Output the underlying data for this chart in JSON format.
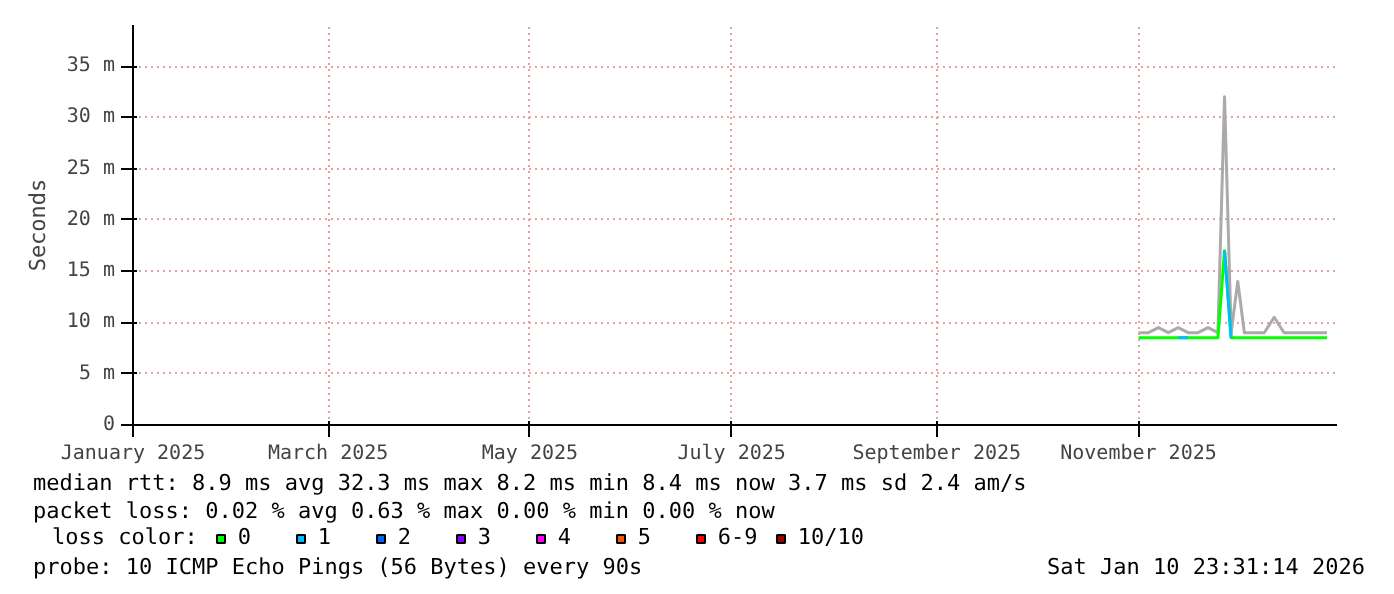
{
  "chart_data": {
    "type": "line",
    "ylabel": "Seconds",
    "x": [
      "2025-11-01",
      "2025-11-04",
      "2025-11-07",
      "2025-11-10",
      "2025-11-13",
      "2025-11-16",
      "2025-11-19",
      "2025-11-22",
      "2025-11-25",
      "2025-11-27",
      "2025-11-29",
      "2025-12-01",
      "2025-12-03",
      "2025-12-06",
      "2025-12-09",
      "2025-12-12",
      "2025-12-15",
      "2025-12-18",
      "2025-12-21",
      "2025-12-24",
      "2025-12-28"
    ],
    "series": [
      {
        "color": "#aaaaaa",
        "values": [
          9,
          9,
          9.5,
          9,
          9.5,
          9,
          9,
          9.5,
          9,
          32,
          9,
          14,
          9,
          9,
          9,
          10.5,
          9,
          9,
          9,
          9,
          9
        ]
      },
      {
        "name": "0",
        "color": "#00ff00",
        "values": [
          8.5,
          8.5,
          8.5,
          8.5,
          8.5,
          8.5,
          8.5,
          8.5,
          8.5,
          17,
          8.5,
          8.5,
          8.5,
          8.5,
          8.5,
          8.5,
          8.5,
          8.5,
          8.5,
          8.5,
          8.5
        ]
      },
      {
        "name": "1",
        "color": "#00bbff",
        "values": [
          null,
          null,
          null,
          null,
          8.5,
          8.5,
          null,
          null,
          null,
          17,
          8.5,
          null,
          null,
          null,
          null,
          null,
          null,
          null,
          null,
          null,
          null
        ]
      },
      {
        "name": "2",
        "color": "#0066ff",
        "values": [
          null,
          null,
          null,
          null,
          null,
          null,
          null,
          null,
          null,
          null,
          null,
          null,
          null,
          null,
          null,
          null,
          null,
          null,
          null,
          null,
          null
        ]
      },
      {
        "name": "3",
        "color": "#8800ff",
        "values": [
          null,
          null,
          null,
          null,
          null,
          null,
          null,
          null,
          null,
          null,
          null,
          null,
          null,
          null,
          null,
          null,
          null,
          null,
          null,
          null,
          null
        ]
      },
      {
        "name": "4",
        "color": "#ff00ff",
        "values": [
          null,
          null,
          null,
          null,
          null,
          null,
          null,
          null,
          null,
          null,
          null,
          null,
          null,
          null,
          null,
          null,
          null,
          null,
          null,
          null,
          null
        ]
      },
      {
        "name": "5",
        "color": "#ff5500",
        "values": [
          null,
          null,
          null,
          null,
          null,
          null,
          null,
          null,
          null,
          null,
          null,
          null,
          null,
          null,
          null,
          null,
          null,
          null,
          null,
          null,
          null
        ]
      },
      {
        "name": "6-9",
        "color": "#ff0000",
        "values": [
          null,
          null,
          null,
          null,
          null,
          null,
          null,
          null,
          null,
          null,
          null,
          null,
          null,
          null,
          null,
          null,
          null,
          null,
          null,
          null,
          null
        ]
      },
      {
        "name": "10/10",
        "color": "#a10000",
        "values": [
          null,
          null,
          null,
          null,
          null,
          null,
          null,
          null,
          null,
          null,
          null,
          null,
          null,
          null,
          null,
          null,
          null,
          null,
          null,
          null,
          null
        ]
      }
    ],
    "legend_title": "loss color:",
    "legend": "bottom",
    "xlim": [
      "2025-01-01",
      "2025-12-31"
    ],
    "xticks": [
      {
        "value": "2025-01-01",
        "label": "January 2025"
      },
      {
        "value": "2025-03-01",
        "label": "March 2025"
      },
      {
        "value": "2025-05-01",
        "label": "May 2025"
      },
      {
        "value": "2025-07-01",
        "label": "July 2025"
      },
      {
        "value": "2025-09-01",
        "label": "September 2025"
      },
      {
        "value": "2025-11-01",
        "label": "November 2025"
      }
    ],
    "ylim": [
      0,
      39
    ],
    "yticks": [
      0,
      {
        "value": 5,
        "label": "5 m"
      },
      {
        "value": 10,
        "label": "10 m"
      },
      {
        "value": 15,
        "label": "15 m"
      },
      {
        "value": 20,
        "label": "20 m"
      },
      {
        "value": 25,
        "label": "25 m"
      },
      {
        "value": 30,
        "label": "30 m"
      },
      {
        "value": 35,
        "label": "35 m"
      }
    ],
    "grid": true,
    "annotations": [
      "median rtt:  8.9 ms avg  32.3 ms max  8.2 ms min  8.4 ms now  3.7 ms sd  2.4   am/s",
      "packet loss: 0.02 % avg  0.63 % max  0.00 % min  0.00 % now",
      "probe:       10 ICMP Echo Pings (56 Bytes) every 90s",
      "Sat Jan 10 23:31:14 2026"
    ]
  }
}
